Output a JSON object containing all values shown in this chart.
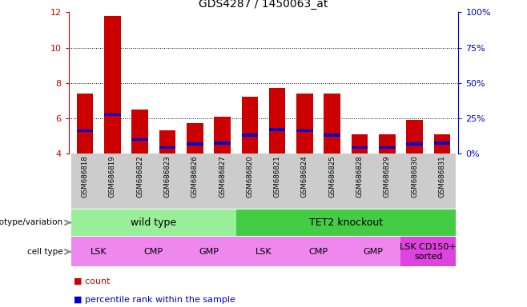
{
  "title": "GDS4287 / 1450063_at",
  "samples": [
    "GSM686818",
    "GSM686819",
    "GSM686822",
    "GSM686823",
    "GSM686826",
    "GSM686827",
    "GSM686820",
    "GSM686821",
    "GSM686824",
    "GSM686825",
    "GSM686828",
    "GSM686829",
    "GSM686830",
    "GSM686831"
  ],
  "count_values": [
    7.4,
    11.8,
    6.5,
    5.3,
    5.7,
    6.1,
    7.2,
    7.7,
    7.4,
    7.4,
    5.1,
    5.1,
    5.9,
    5.1
  ],
  "percentile_values": [
    5.3,
    6.2,
    4.8,
    4.35,
    4.55,
    4.6,
    5.05,
    5.35,
    5.3,
    5.05,
    4.35,
    4.35,
    4.55,
    4.6
  ],
  "ymin": 4,
  "ymax": 12,
  "yticks": [
    4,
    6,
    8,
    10,
    12
  ],
  "right_ytick_labels": [
    "0%",
    "25%",
    "50%",
    "75%",
    "100%"
  ],
  "bar_color": "#cc0000",
  "blue_color": "#0000cc",
  "bar_width": 0.6,
  "genotype_groups": [
    {
      "label": "wild type",
      "start": 0,
      "end": 6,
      "color": "#99ee99"
    },
    {
      "label": "TET2 knockout",
      "start": 6,
      "end": 14,
      "color": "#44cc44"
    }
  ],
  "cell_type_groups": [
    {
      "label": "LSK",
      "start": 0,
      "end": 2,
      "color": "#ee88ee"
    },
    {
      "label": "CMP",
      "start": 2,
      "end": 4,
      "color": "#ee88ee"
    },
    {
      "label": "GMP",
      "start": 4,
      "end": 6,
      "color": "#ee88ee"
    },
    {
      "label": "LSK",
      "start": 6,
      "end": 8,
      "color": "#ee88ee"
    },
    {
      "label": "CMP",
      "start": 8,
      "end": 10,
      "color": "#ee88ee"
    },
    {
      "label": "GMP",
      "start": 10,
      "end": 12,
      "color": "#ee88ee"
    },
    {
      "label": "LSK CD150+\nsorted",
      "start": 12,
      "end": 14,
      "color": "#dd44dd"
    }
  ],
  "legend_count_label": "count",
  "legend_pct_label": "percentile rank within the sample",
  "bar_axis_color": "#cc0000",
  "right_axis_color": "#0000cc",
  "grid_color": "#000000",
  "sample_box_color": "#cccccc",
  "left_label_color": "#888888"
}
